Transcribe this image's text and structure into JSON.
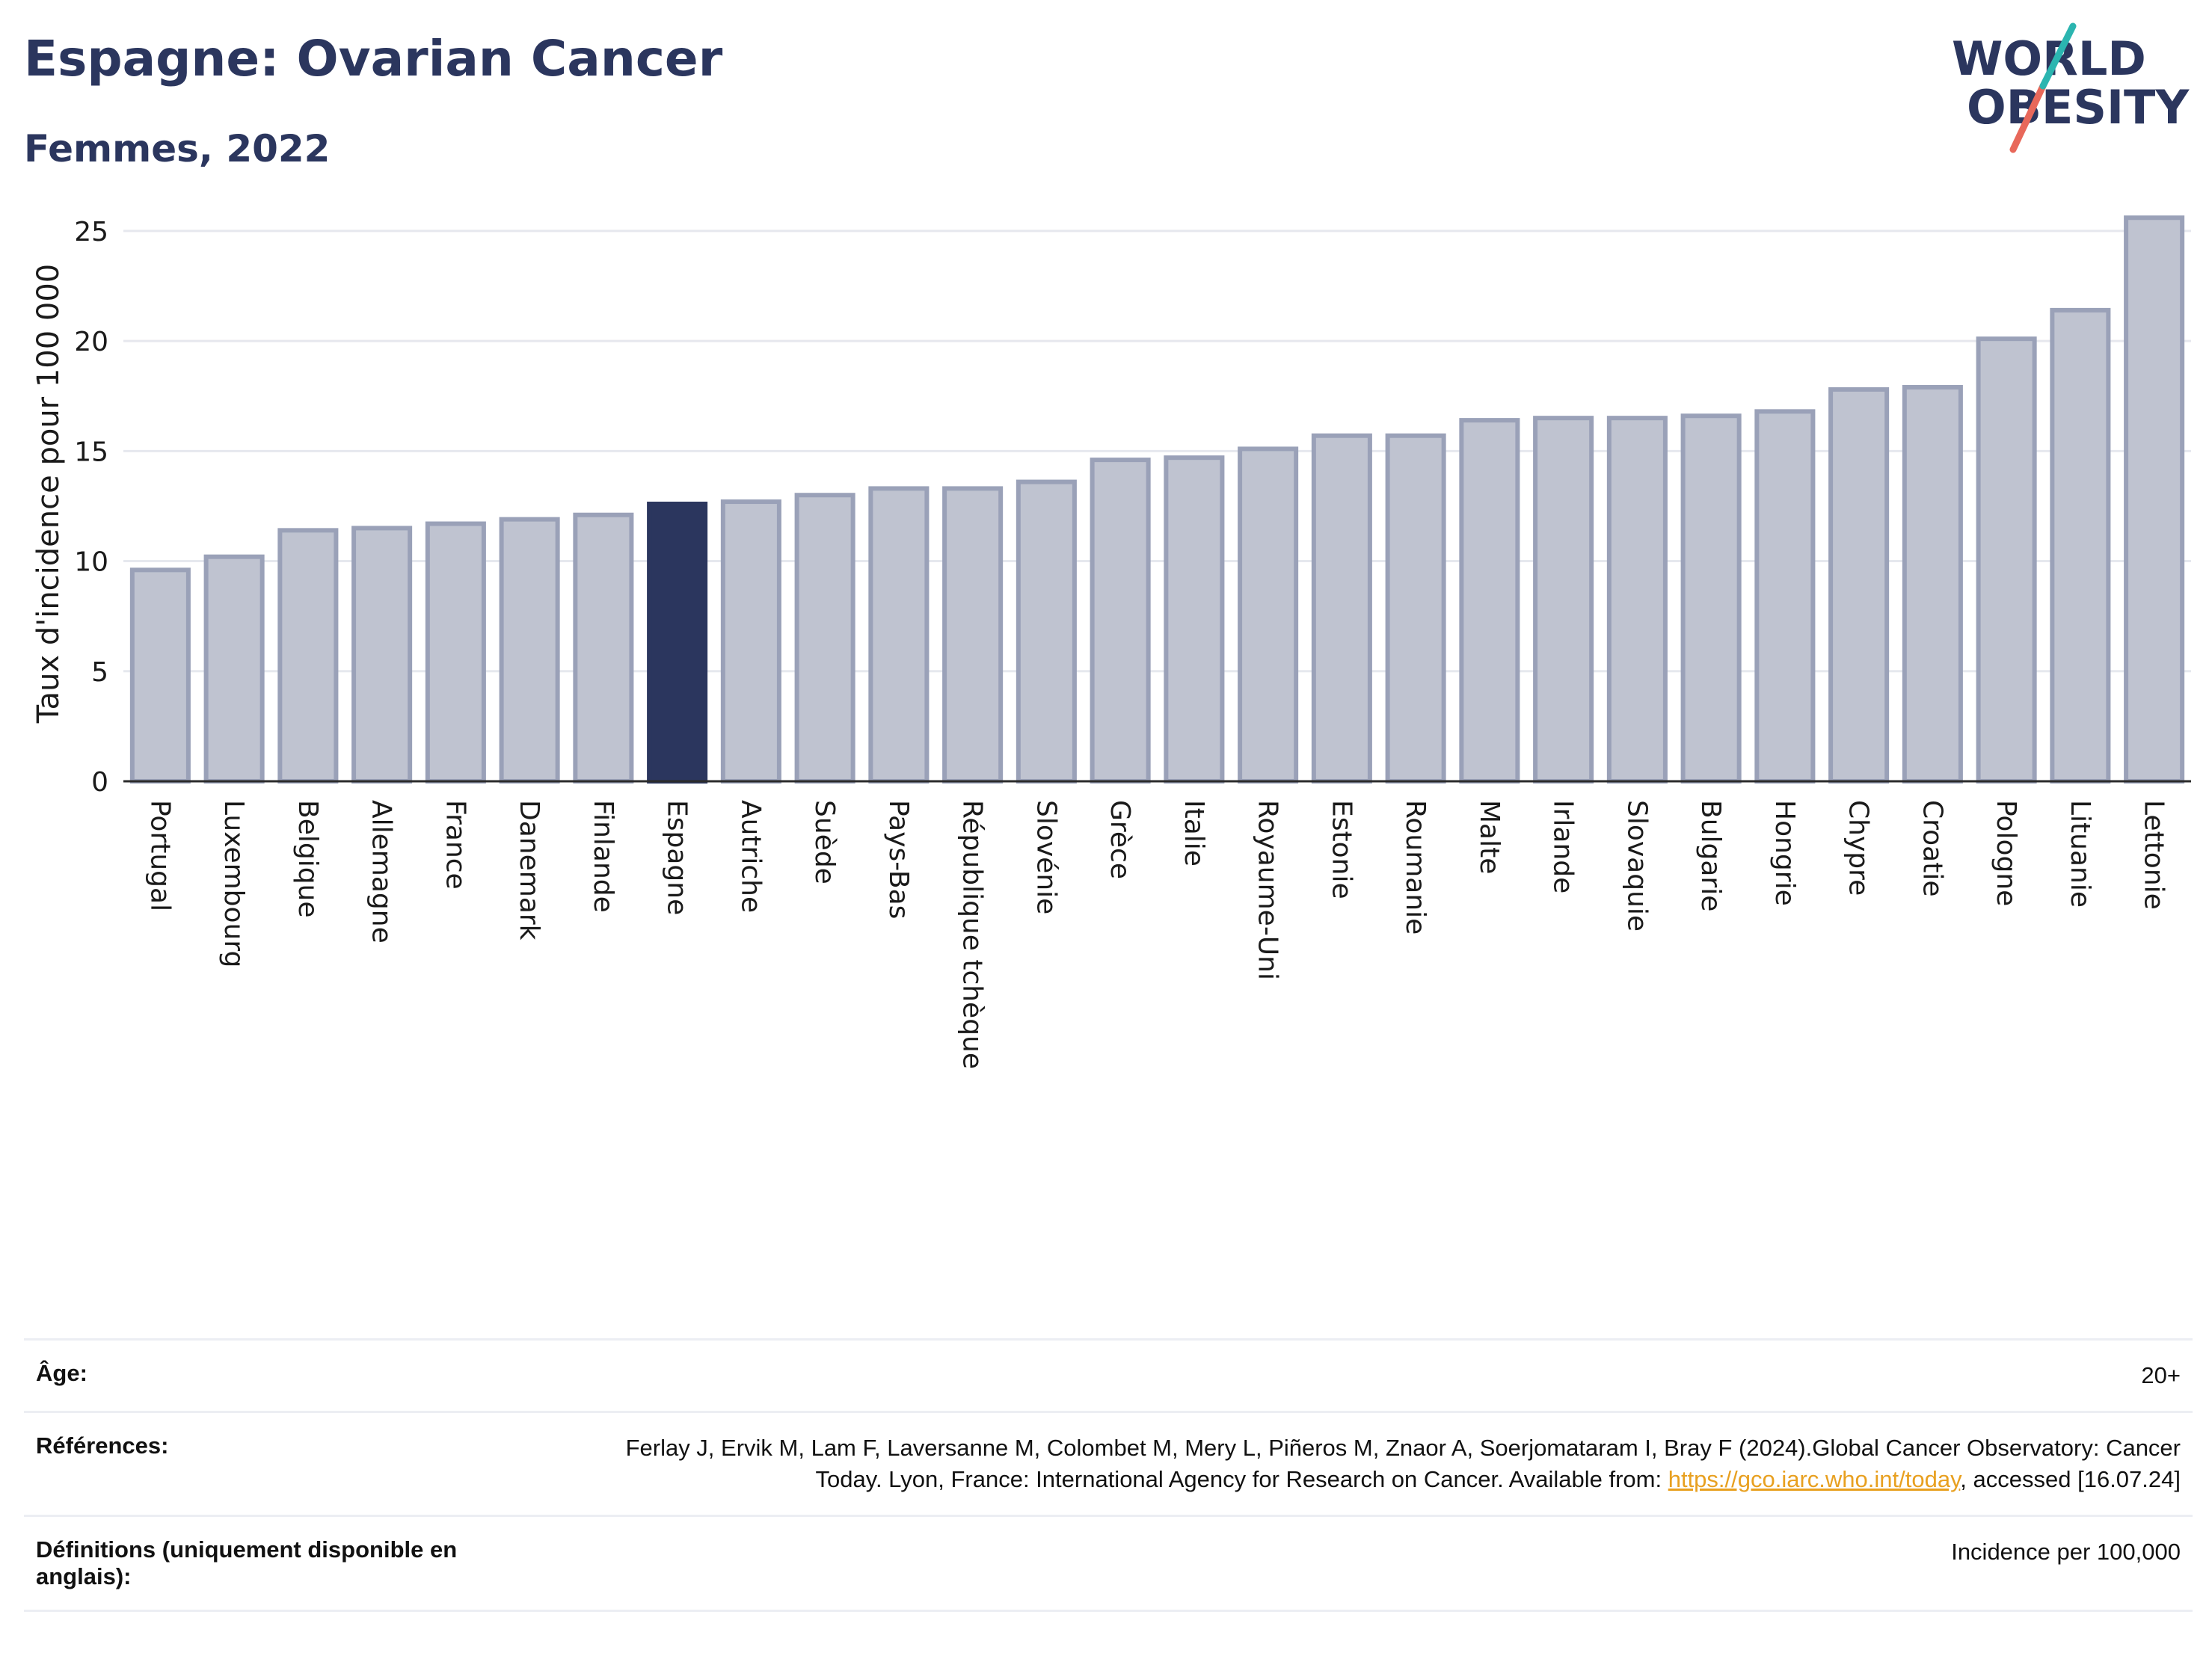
{
  "header": {
    "title": "Espagne: Ovarian Cancer",
    "subtitle": "Femmes, 2022"
  },
  "logo": {
    "line1": "WORLD",
    "line2": "OBESITY",
    "colors": [
      "#2b365e",
      "#e8685a",
      "#2bb5b0"
    ]
  },
  "colors": {
    "bar": "#bfc3d0",
    "bar_border": "#9aa1b8",
    "highlight": "#2b365e",
    "text": "#2b365e",
    "link": "#e8a020"
  },
  "chart_data": {
    "type": "bar",
    "categories": [
      "Portugal",
      "Luxembourg",
      "Belgique",
      "Allemagne",
      "France",
      "Danemark",
      "Finlande",
      "Espagne",
      "Autriche",
      "Suède",
      "Pays-Bas",
      "République tchèque",
      "Slovénie",
      "Grèce",
      "Italie",
      "Royaume-Uni",
      "Estonie",
      "Roumanie",
      "Malte",
      "Irlande",
      "Slovaquie",
      "Bulgarie",
      "Hongrie",
      "Chypre",
      "Croatie",
      "Pologne",
      "Lituanie",
      "Lettonie"
    ],
    "values": [
      9.6,
      10.2,
      11.4,
      11.5,
      11.7,
      11.9,
      12.1,
      12.6,
      12.7,
      13.0,
      13.3,
      13.3,
      13.6,
      14.6,
      14.7,
      15.1,
      15.7,
      15.7,
      16.4,
      16.5,
      16.5,
      16.6,
      16.8,
      17.8,
      17.9,
      20.1,
      21.4,
      25.6
    ],
    "highlight": "Espagne",
    "ylabel": "Taux d'incidence pour 100 000",
    "xlabel": "",
    "ylim": [
      0,
      27
    ],
    "yticks": [
      0,
      5,
      10,
      15,
      20,
      25
    ],
    "grid": true
  },
  "info": {
    "age_label": "Âge:",
    "age_value": "20+",
    "refs_label": "Références:",
    "refs_text": "Ferlay J, Ervik M, Lam F, Laversanne M, Colombet M, Mery L, Piñeros M, Znaor A, Soerjomataram I, Bray F (2024).Global Cancer Observatory: Cancer Today. Lyon, France: International Agency for Research on Cancer. Available from: ",
    "refs_link": "https://gco.iarc.who.int/today",
    "refs_tail": ", accessed [16.07.24]",
    "defs_label": "Définitions (uniquement disponible en anglais):",
    "defs_value": "Incidence per 100,000"
  }
}
